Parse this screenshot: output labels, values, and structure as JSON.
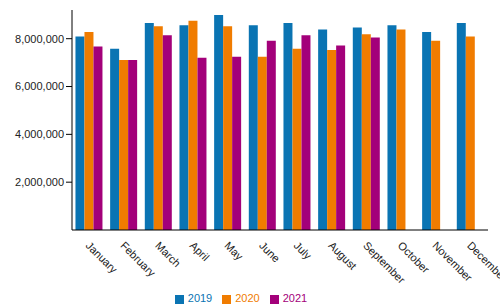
{
  "chart_data": {
    "type": "bar",
    "categories": [
      "January",
      "February",
      "March",
      "April",
      "May",
      "June",
      "July",
      "August",
      "September",
      "October",
      "November",
      "December"
    ],
    "series": [
      {
        "name": "2019",
        "color": "#0a74b3",
        "values": [
          8090000,
          7580000,
          8660000,
          8560000,
          8990000,
          8560000,
          8660000,
          8380000,
          8470000,
          8560000,
          8280000,
          8660000
        ]
      },
      {
        "name": "2020",
        "color": "#f07c00",
        "values": [
          8280000,
          7110000,
          8520000,
          8750000,
          8520000,
          7250000,
          7580000,
          7530000,
          8190000,
          8380000,
          7910000,
          8090000
        ]
      },
      {
        "name": "2021",
        "color": "#a3007a",
        "values": [
          7670000,
          7110000,
          8140000,
          7200000,
          7250000,
          7910000,
          8140000,
          7720000,
          8050000,
          null,
          null,
          null
        ]
      }
    ],
    "ylim": [
      0,
      9200000
    ],
    "yticks": [
      {
        "value": 2000000,
        "label": "2,000,000"
      },
      {
        "value": 4000000,
        "label": "4,000,000"
      },
      {
        "value": 6000000,
        "label": "6,000,000"
      },
      {
        "value": 8000000,
        "label": "8,000,000"
      }
    ],
    "grid": false,
    "legend": "bottom"
  }
}
